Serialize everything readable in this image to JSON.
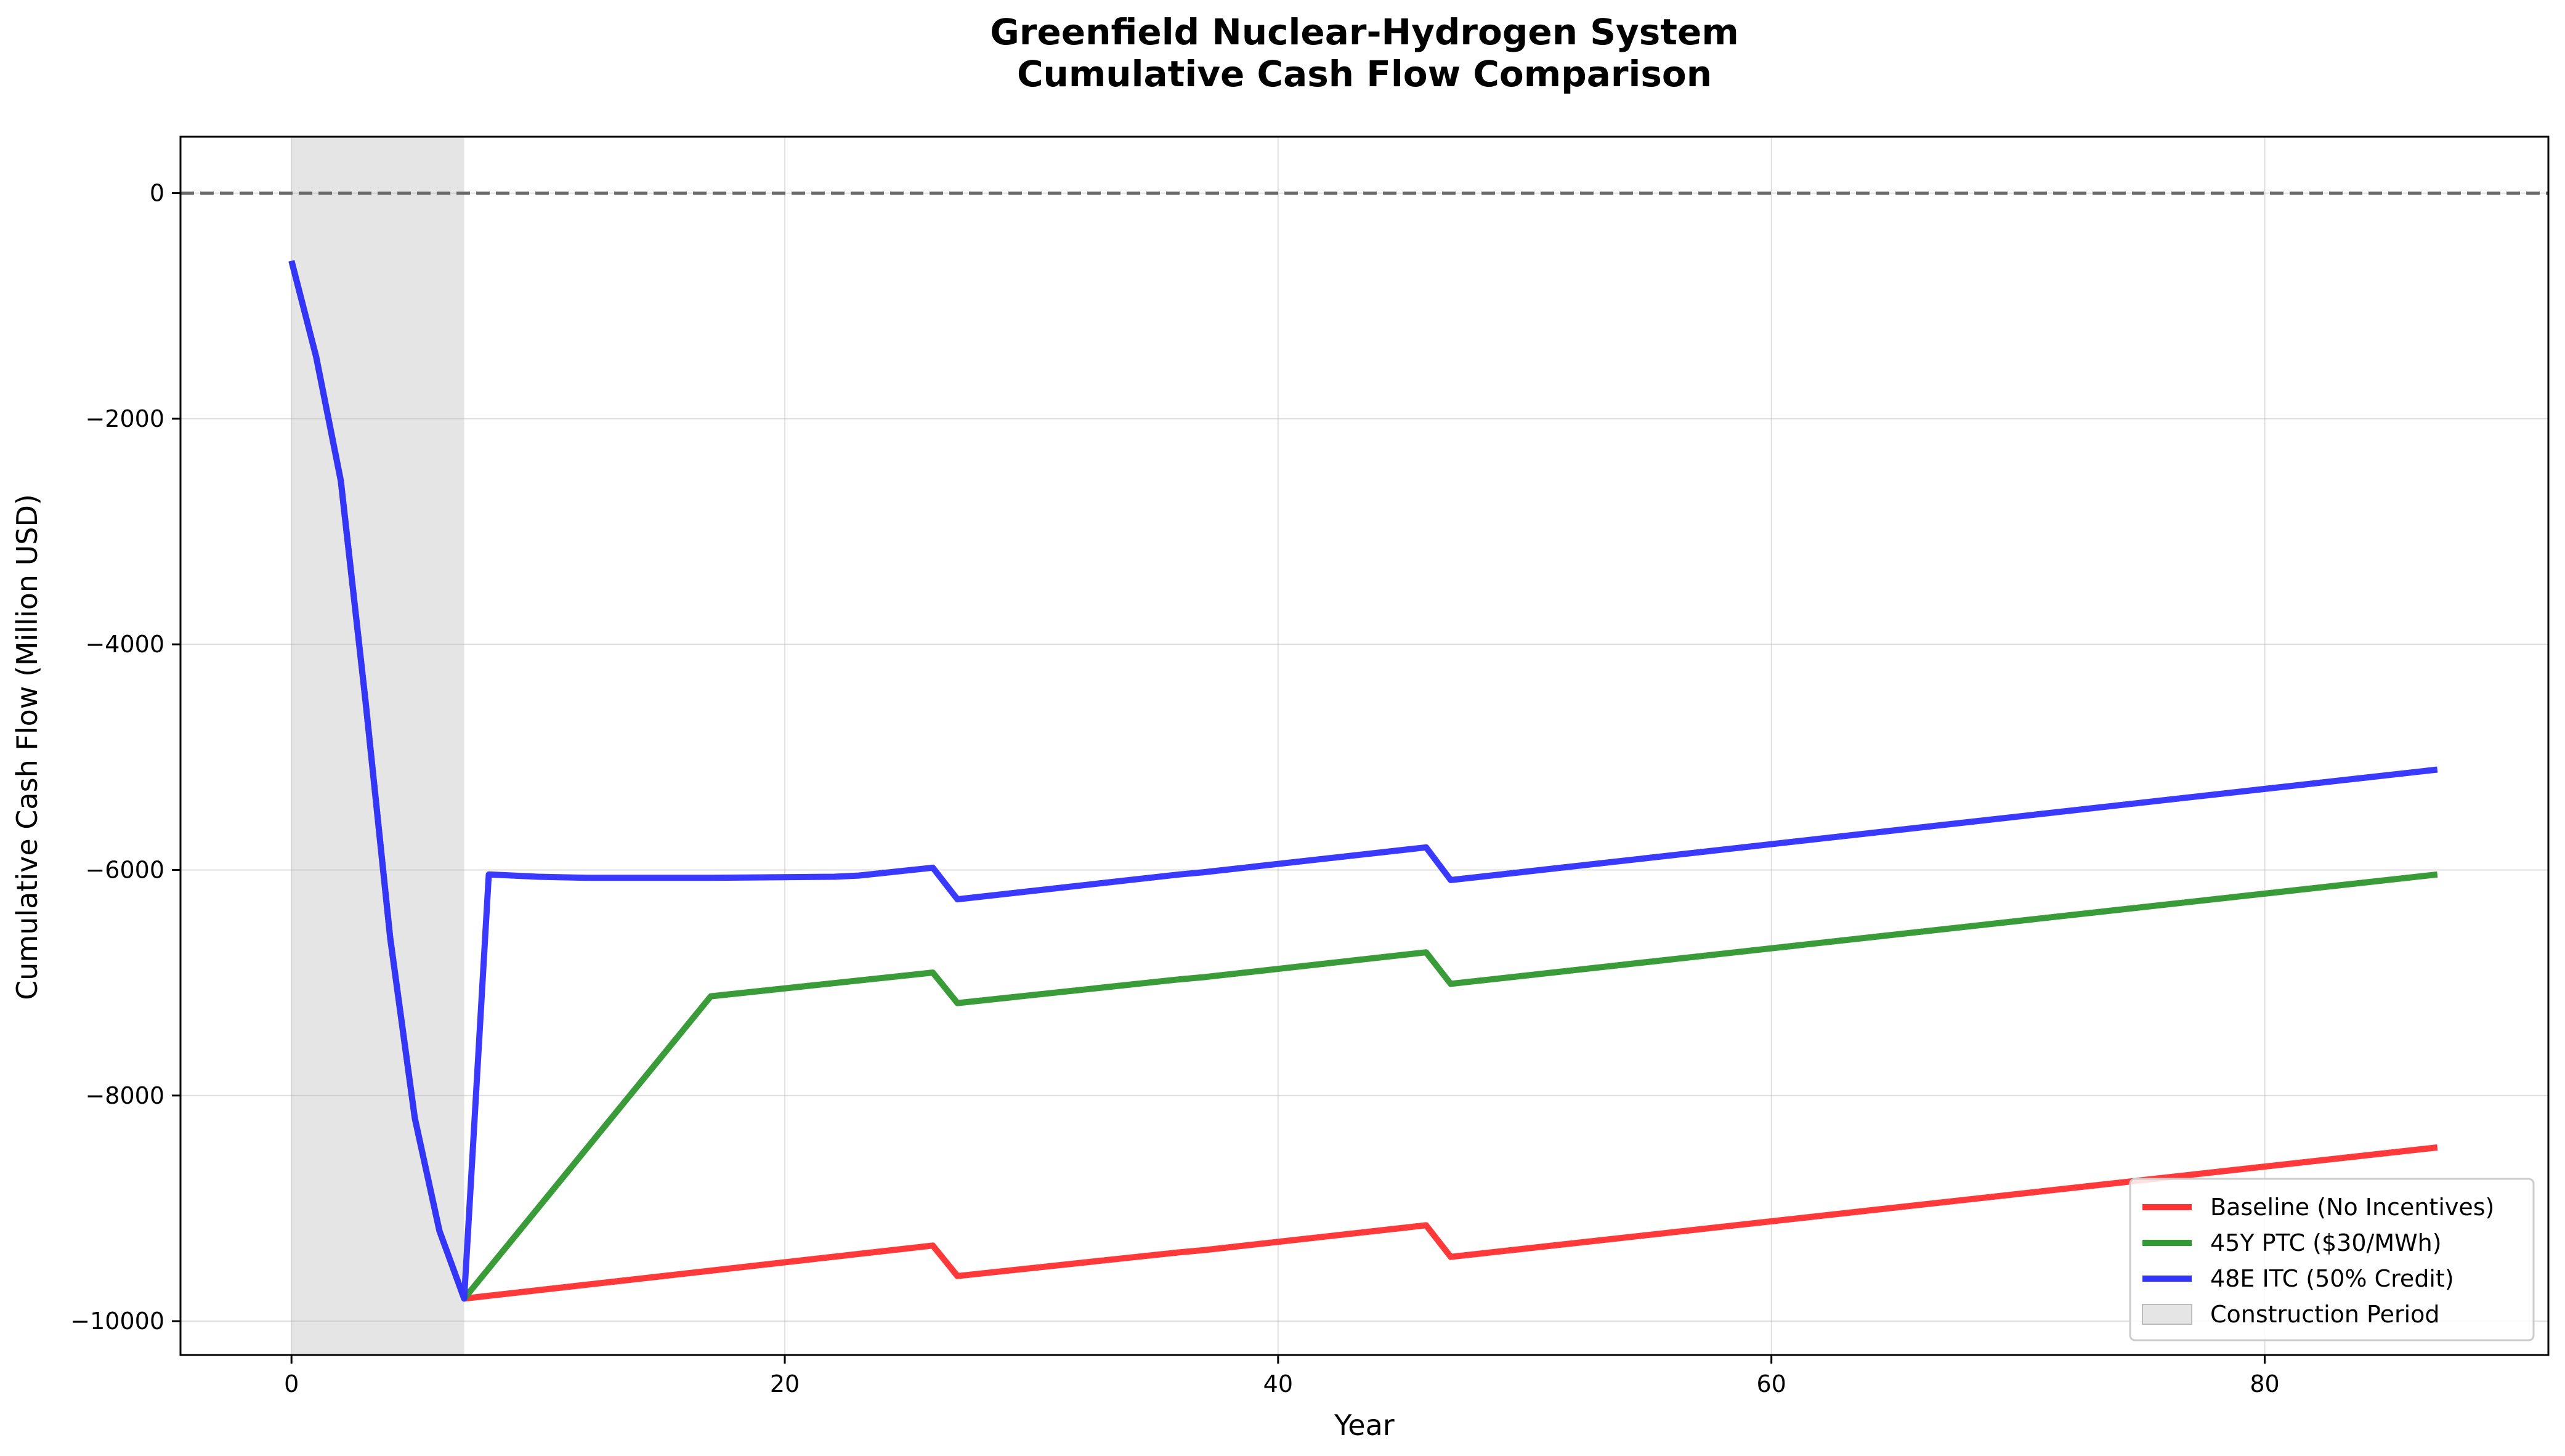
{
  "chart_data": {
    "type": "line",
    "title": [
      "Greenfield Nuclear-Hydrogen System",
      "Cumulative Cash Flow Comparison"
    ],
    "xlabel": "Year",
    "ylabel": "Cumulative Cash Flow (Million USD)",
    "xlim": [
      -4.5,
      91.5
    ],
    "ylim": [
      -10300,
      500
    ],
    "xticks": [
      0,
      20,
      40,
      60,
      80
    ],
    "yticks": [
      0,
      -2000,
      -4000,
      -6000,
      -8000,
      -10000
    ],
    "xtick_labels": [
      "0",
      "20",
      "40",
      "60",
      "80"
    ],
    "ytick_labels": [
      "0",
      "−2000",
      "−4000",
      "−6000",
      "−8000",
      "−10000"
    ],
    "grid": true,
    "legend_position": "bottom-right",
    "reference_line": {
      "y": 0,
      "style": "dashed",
      "color": "#666666"
    },
    "shaded_region": {
      "x": [
        0,
        7
      ],
      "color": "#d3d3d3",
      "label": "Construction Period"
    },
    "series": [
      {
        "name": "Baseline (No Incentives)",
        "color": "#ff3333",
        "points": [
          [
            0,
            -600
          ],
          [
            1,
            -1450
          ],
          [
            2,
            -2550
          ],
          [
            3,
            -4500
          ],
          [
            4,
            -6600
          ],
          [
            5,
            -8200
          ],
          [
            6,
            -9200
          ],
          [
            7,
            -9800
          ],
          [
            26,
            -9330
          ],
          [
            27,
            -9600
          ],
          [
            36,
            -9390
          ],
          [
            37,
            -9370
          ],
          [
            46,
            -9150
          ],
          [
            47,
            -9430
          ],
          [
            87,
            -8460
          ]
        ]
      },
      {
        "name": "45Y PTC ($30/MWh)",
        "color": "#339933",
        "points": [
          [
            0,
            -600
          ],
          [
            1,
            -1450
          ],
          [
            2,
            -2550
          ],
          [
            3,
            -4500
          ],
          [
            4,
            -6600
          ],
          [
            5,
            -8200
          ],
          [
            6,
            -9200
          ],
          [
            7,
            -9800
          ],
          [
            17,
            -7120
          ],
          [
            26,
            -6910
          ],
          [
            27,
            -7180
          ],
          [
            36,
            -6970
          ],
          [
            37,
            -6950
          ],
          [
            46,
            -6730
          ],
          [
            47,
            -7010
          ],
          [
            87,
            -6040
          ]
        ]
      },
      {
        "name": "48E ITC (50% Credit)",
        "color": "#3333ff",
        "points": [
          [
            0,
            -600
          ],
          [
            1,
            -1450
          ],
          [
            2,
            -2550
          ],
          [
            3,
            -4500
          ],
          [
            4,
            -6600
          ],
          [
            5,
            -8200
          ],
          [
            6,
            -9200
          ],
          [
            7,
            -9800
          ],
          [
            8,
            -6040
          ],
          [
            10,
            -6060
          ],
          [
            12,
            -6070
          ],
          [
            17,
            -6070
          ],
          [
            22,
            -6060
          ],
          [
            23,
            -6050
          ],
          [
            26,
            -5980
          ],
          [
            27,
            -6260
          ],
          [
            36,
            -6040
          ],
          [
            37,
            -6020
          ],
          [
            46,
            -5800
          ],
          [
            47,
            -6090
          ],
          [
            87,
            -5110
          ]
        ]
      }
    ]
  }
}
